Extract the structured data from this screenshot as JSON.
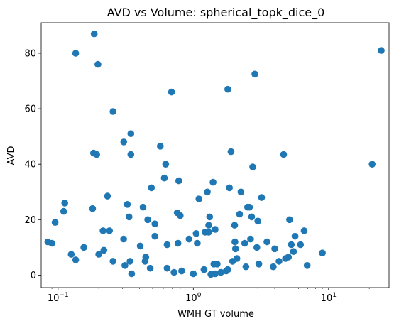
{
  "chart_data": {
    "type": "scatter",
    "title": "AVD vs Volume: spherical_topk_dice_0",
    "xlabel": "WMH GT volume",
    "ylabel": "AVD",
    "xscale": "log",
    "xlim": [
      0.075,
      28
    ],
    "ylim": [
      -4.5,
      91
    ],
    "grid": false,
    "marker_color": "#1f77b4",
    "xticks": [
      {
        "value": 0.1,
        "base": "10",
        "exp": "−1"
      },
      {
        "value": 1,
        "base": "10",
        "exp": "0"
      },
      {
        "value": 10,
        "base": "10",
        "exp": "1"
      }
    ],
    "yticks": [
      0,
      20,
      40,
      60,
      80
    ],
    "points": [
      [
        0.084,
        12
      ],
      [
        0.09,
        11.5
      ],
      [
        0.095,
        19
      ],
      [
        0.11,
        23
      ],
      [
        0.112,
        26
      ],
      [
        0.125,
        7.5
      ],
      [
        0.135,
        80
      ],
      [
        0.135,
        5.5
      ],
      [
        0.155,
        10
      ],
      [
        0.18,
        24
      ],
      [
        0.183,
        44
      ],
      [
        0.185,
        87
      ],
      [
        0.193,
        43.5
      ],
      [
        0.197,
        76
      ],
      [
        0.2,
        7.5
      ],
      [
        0.215,
        16
      ],
      [
        0.218,
        9
      ],
      [
        0.232,
        28.5
      ],
      [
        0.24,
        16
      ],
      [
        0.255,
        59
      ],
      [
        0.255,
        5
      ],
      [
        0.305,
        13
      ],
      [
        0.306,
        48
      ],
      [
        0.312,
        3.5
      ],
      [
        0.325,
        25.5
      ],
      [
        0.335,
        21
      ],
      [
        0.34,
        5
      ],
      [
        0.345,
        51
      ],
      [
        0.345,
        43.5
      ],
      [
        0.35,
        0.5
      ],
      [
        0.405,
        10.5
      ],
      [
        0.425,
        24.5
      ],
      [
        0.44,
        5
      ],
      [
        0.445,
        6.5
      ],
      [
        0.46,
        20
      ],
      [
        0.48,
        2.5
      ],
      [
        0.49,
        31.5
      ],
      [
        0.52,
        18.5
      ],
      [
        0.52,
        14
      ],
      [
        0.57,
        46.5
      ],
      [
        0.61,
        35
      ],
      [
        0.625,
        40
      ],
      [
        0.64,
        11
      ],
      [
        0.64,
        2.5
      ],
      [
        0.69,
        66
      ],
      [
        0.72,
        1
      ],
      [
        0.76,
        22.5
      ],
      [
        0.77,
        11.5
      ],
      [
        0.78,
        34
      ],
      [
        0.8,
        21.5
      ],
      [
        0.82,
        1.5
      ],
      [
        0.93,
        13
      ],
      [
        1.0,
        0.5
      ],
      [
        1.05,
        15
      ],
      [
        1.07,
        11.5
      ],
      [
        1.1,
        27.5
      ],
      [
        1.2,
        2
      ],
      [
        1.22,
        15.5
      ],
      [
        1.27,
        30
      ],
      [
        1.3,
        18
      ],
      [
        1.3,
        15.5
      ],
      [
        1.32,
        21
      ],
      [
        1.35,
        0.3
      ],
      [
        1.4,
        33.5
      ],
      [
        1.42,
        4
      ],
      [
        1.45,
        0.5
      ],
      [
        1.45,
        16.5
      ],
      [
        1.5,
        4
      ],
      [
        1.6,
        1
      ],
      [
        1.75,
        1.5
      ],
      [
        1.8,
        67
      ],
      [
        1.8,
        2
      ],
      [
        1.85,
        31.5
      ],
      [
        1.9,
        44.5
      ],
      [
        1.95,
        5
      ],
      [
        2.02,
        18
      ],
      [
        2.03,
        12
      ],
      [
        2.05,
        9.5
      ],
      [
        2.1,
        6
      ],
      [
        2.2,
        22
      ],
      [
        2.25,
        30
      ],
      [
        2.4,
        11.5
      ],
      [
        2.45,
        3
      ],
      [
        2.52,
        24.5
      ],
      [
        2.6,
        24.5
      ],
      [
        2.65,
        13
      ],
      [
        2.7,
        21
      ],
      [
        2.75,
        39
      ],
      [
        2.85,
        72.5
      ],
      [
        2.95,
        10
      ],
      [
        3.0,
        19.5
      ],
      [
        3.05,
        4
      ],
      [
        3.2,
        28
      ],
      [
        3.5,
        12
      ],
      [
        3.9,
        3
      ],
      [
        4.0,
        9.5
      ],
      [
        4.3,
        5
      ],
      [
        4.65,
        43.5
      ],
      [
        4.8,
        6
      ],
      [
        5.05,
        6.5
      ],
      [
        5.15,
        20
      ],
      [
        5.3,
        11
      ],
      [
        5.5,
        8.5
      ],
      [
        5.65,
        14
      ],
      [
        6.2,
        11
      ],
      [
        6.6,
        16
      ],
      [
        6.95,
        3.5
      ],
      [
        9.0,
        8
      ],
      [
        21.0,
        40
      ],
      [
        24.5,
        81
      ]
    ]
  }
}
